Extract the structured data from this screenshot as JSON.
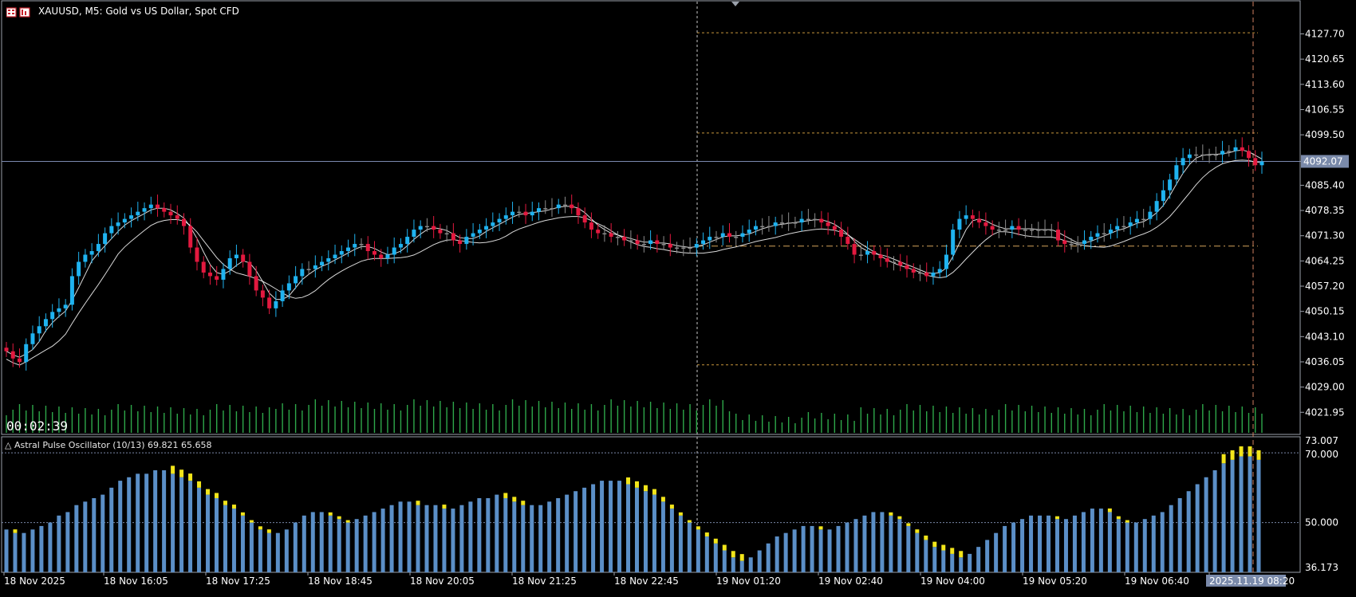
{
  "window": {
    "title": "XAUUSD, M5:  Gold vs US Dollar, Spot CFD",
    "icon": "chart-window-icon"
  },
  "timer": "00:02:39",
  "indicator": {
    "title": "△ Astral Pulse Oscillator (10/13) 69.821 65.658",
    "levels_label": [
      "70.000",
      "50.000"
    ],
    "axis_top": "73.007",
    "axis_bottom": "36.173"
  },
  "colors": {
    "background": "#000000",
    "bull": "#1fb3f0",
    "bear": "#e3193f",
    "doji": "#8c8c8c",
    "ma": "#ffffff",
    "volume": "#2ea84a",
    "histogram": "#5b8fc7",
    "histogram_cap": "#f2e51a",
    "level_line": "#c8963c",
    "grid_dotted": "#7a88a8"
  },
  "chart_data": [
    {
      "type": "candlestick",
      "symbol": "XAUUSD",
      "timeframe": "M5",
      "current_price": "4092.07",
      "y_ticks": [
        "4127.70",
        "4120.65",
        "4113.60",
        "4106.55",
        "4099.50",
        "4092.07",
        "4085.40",
        "4078.35",
        "4071.30",
        "4064.25",
        "4057.20",
        "4050.15",
        "4043.10",
        "4036.05",
        "4029.00",
        "4021.95"
      ],
      "ylim": [
        4018.0,
        4134.5
      ],
      "x_ticks": [
        "18 Nov 2025",
        "18 Nov 16:05",
        "18 Nov 17:25",
        "18 Nov 18:45",
        "18 Nov 20:05",
        "18 Nov 21:25",
        "18 Nov 22:45",
        "19 Nov 01:20",
        "19 Nov 02:40",
        "19 Nov 04:00",
        "19 Nov 05:20",
        "19 Nov 06:40",
        "2025.11.19 08:20"
      ],
      "horizontal_levels": [
        4128.0,
        4100.0,
        4068.4,
        4035.2
      ],
      "closes": [
        4039,
        4037,
        4036,
        4041,
        4044,
        4046,
        4048,
        4050,
        4051,
        4052,
        4060,
        4064,
        4066,
        4067,
        4069,
        4072,
        4074,
        4075,
        4076,
        4077,
        4078,
        4079,
        4080,
        4079,
        4078,
        4077,
        4076,
        4074,
        4068,
        4064,
        4061,
        4060,
        4059,
        4062,
        4065,
        4066,
        4064,
        4060,
        4056,
        4054,
        4051,
        4053,
        4056,
        4058,
        4060,
        4062,
        4062,
        4063,
        4064,
        4065,
        4066,
        4067,
        4068,
        4069,
        4069,
        4067,
        4066,
        4065,
        4066,
        4068,
        4069,
        4071,
        4073,
        4074,
        4074,
        4073,
        4072,
        4072,
        4070,
        4069,
        4071,
        4072,
        4073,
        4074,
        4075,
        4076,
        4077,
        4078,
        4078,
        4077,
        4078,
        4079,
        4079,
        4079,
        4080,
        4080,
        4079,
        4077,
        4075,
        4073,
        4072,
        4072,
        4071,
        4071,
        4070,
        4070,
        4069,
        4069,
        4070,
        4069,
        4069,
        4068,
        4068,
        4068,
        4068,
        4069,
        4070,
        4071,
        4071,
        4072,
        4071,
        4071,
        4072,
        4073,
        4074,
        4074,
        4074,
        4075,
        4075,
        4075,
        4075,
        4076,
        4076,
        4076,
        4075,
        4074,
        4073,
        4071,
        4069,
        4066,
        4066,
        4067,
        4066,
        4065,
        4064,
        4064,
        4063,
        4062,
        4061,
        4061,
        4060,
        4061,
        4062,
        4066,
        4073,
        4076,
        4077,
        4076,
        4075,
        4074,
        4073,
        4073,
        4073,
        4074,
        4073,
        4073,
        4073,
        4073,
        4073,
        4073,
        4070,
        4069,
        4069,
        4069,
        4070,
        4071,
        4072,
        4072,
        4073,
        4074,
        4074,
        4075,
        4076,
        4076,
        4078,
        4081,
        4084,
        4087,
        4091,
        4093,
        4094,
        4094,
        4094,
        4094,
        4094,
        4095,
        4095,
        4096,
        4095,
        4093,
        4091,
        4092
      ]
    },
    {
      "type": "bar",
      "name": "Astral Pulse Oscillator",
      "ylim": [
        36.173,
        73.007
      ],
      "levels": [
        70.0,
        50.0
      ],
      "values": [
        48,
        47,
        47,
        48,
        49,
        50,
        52,
        53,
        55,
        56,
        57,
        58,
        60,
        62,
        63,
        64,
        64,
        65,
        65,
        64,
        63,
        62,
        60,
        58,
        57,
        55,
        54,
        52,
        50,
        48,
        47,
        47,
        48,
        50,
        52,
        53,
        53,
        52,
        51,
        50,
        51,
        52,
        53,
        54,
        55,
        56,
        56,
        55,
        55,
        55,
        54,
        54,
        55,
        56,
        57,
        57,
        58,
        57,
        56,
        55,
        55,
        55,
        56,
        57,
        58,
        59,
        60,
        61,
        62,
        62,
        62,
        61,
        60,
        59,
        58,
        56,
        54,
        52,
        50,
        48,
        46,
        44,
        42,
        40,
        39,
        40,
        42,
        44,
        46,
        47,
        48,
        49,
        49,
        48,
        48,
        49,
        50,
        51,
        52,
        53,
        53,
        52,
        51,
        49,
        47,
        45,
        43,
        42,
        41,
        40,
        41,
        43,
        45,
        47,
        49,
        50,
        51,
        52,
        52,
        52,
        51,
        51,
        52,
        53,
        54,
        54,
        53,
        51,
        50,
        50,
        51,
        52,
        53,
        55,
        57,
        59,
        61,
        63,
        65,
        67,
        68,
        69,
        69,
        68
      ]
    }
  ]
}
